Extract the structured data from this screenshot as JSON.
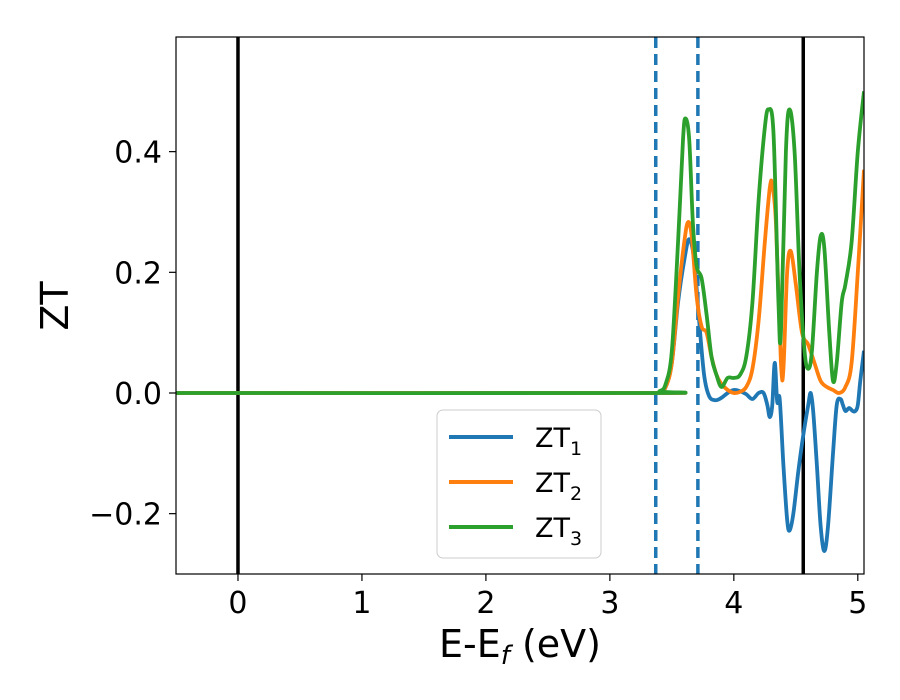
{
  "chart_data": {
    "type": "line",
    "xlabel": "E-E",
    "xlabel_sub": "f",
    "xlabel_unit": " (eV)",
    "ylabel": "ZT",
    "xlim": [
      -0.5,
      5.05
    ],
    "ylim": [
      -0.3,
      0.59
    ],
    "xticks": [
      0,
      1,
      2,
      3,
      4,
      5
    ],
    "xtick_labels": [
      "0",
      "1",
      "2",
      "3",
      "4",
      "5"
    ],
    "yticks": [
      -0.2,
      0.0,
      0.2,
      0.4
    ],
    "ytick_labels": [
      "−0.2",
      "0.0",
      "0.2",
      "0.4"
    ],
    "grid": false,
    "legend_position": "bottom-center",
    "vlines": [
      {
        "x": 0.0,
        "style": "solid",
        "color": "#000000"
      },
      {
        "x": 4.56,
        "style": "solid",
        "color": "#000000"
      },
      {
        "x": 3.37,
        "style": "dashed",
        "color": "#1f77b4"
      },
      {
        "x": 3.71,
        "style": "dashed",
        "color": "#1f77b4"
      }
    ],
    "series": [
      {
        "name": "ZT",
        "subscript": "1",
        "color": "#1f77b4",
        "points": [
          [
            -0.5,
            0.0
          ],
          [
            3.3,
            0.0
          ],
          [
            3.4,
            0.002
          ],
          [
            3.45,
            0.01
          ],
          [
            3.5,
            0.05
          ],
          [
            3.55,
            0.15
          ],
          [
            3.6,
            0.22
          ],
          [
            3.64,
            0.255
          ],
          [
            3.68,
            0.22
          ],
          [
            3.72,
            0.12
          ],
          [
            3.76,
            0.03
          ],
          [
            3.8,
            -0.005
          ],
          [
            3.85,
            -0.012
          ],
          [
            3.9,
            -0.008
          ],
          [
            3.95,
            0.0
          ],
          [
            4.0,
            0.005
          ],
          [
            4.05,
            0.003
          ],
          [
            4.1,
            -0.002
          ],
          [
            4.15,
            -0.01
          ],
          [
            4.2,
            0.0
          ],
          [
            4.24,
            0.0
          ],
          [
            4.27,
            -0.02
          ],
          [
            4.29,
            -0.04
          ],
          [
            4.31,
            -0.02
          ],
          [
            4.33,
            0.05
          ],
          [
            4.35,
            -0.015
          ],
          [
            4.37,
            -0.01
          ],
          [
            4.4,
            -0.12
          ],
          [
            4.43,
            -0.21
          ],
          [
            4.45,
            -0.228
          ],
          [
            4.48,
            -0.2
          ],
          [
            4.52,
            -0.13
          ],
          [
            4.56,
            -0.07
          ],
          [
            4.6,
            -0.02
          ],
          [
            4.62,
            0.0
          ],
          [
            4.64,
            -0.03
          ],
          [
            4.67,
            -0.12
          ],
          [
            4.7,
            -0.22
          ],
          [
            4.73,
            -0.262
          ],
          [
            4.76,
            -0.22
          ],
          [
            4.8,
            -0.1
          ],
          [
            4.83,
            -0.02
          ],
          [
            4.86,
            -0.01
          ],
          [
            4.88,
            -0.02
          ],
          [
            4.9,
            -0.03
          ],
          [
            4.93,
            -0.025
          ],
          [
            4.96,
            -0.03
          ],
          [
            4.98,
            -0.03
          ],
          [
            5.0,
            -0.02
          ],
          [
            5.02,
            0.02
          ],
          [
            5.05,
            0.07
          ]
        ]
      },
      {
        "name": "ZT",
        "subscript": "2",
        "color": "#ff7f0e",
        "points": [
          [
            -0.5,
            0.0
          ],
          [
            3.3,
            0.0
          ],
          [
            3.4,
            0.002
          ],
          [
            3.45,
            0.01
          ],
          [
            3.5,
            0.05
          ],
          [
            3.55,
            0.16
          ],
          [
            3.6,
            0.25
          ],
          [
            3.63,
            0.283
          ],
          [
            3.66,
            0.26
          ],
          [
            3.7,
            0.16
          ],
          [
            3.74,
            0.11
          ],
          [
            3.78,
            0.1
          ],
          [
            3.82,
            0.06
          ],
          [
            3.86,
            0.03
          ],
          [
            3.9,
            0.015
          ],
          [
            3.95,
            0.005
          ],
          [
            4.0,
            0.0
          ],
          [
            4.05,
            0.002
          ],
          [
            4.1,
            0.01
          ],
          [
            4.15,
            0.04
          ],
          [
            4.2,
            0.12
          ],
          [
            4.25,
            0.25
          ],
          [
            4.29,
            0.34
          ],
          [
            4.31,
            0.345
          ],
          [
            4.34,
            0.28
          ],
          [
            4.38,
            0.05
          ],
          [
            4.4,
            0.04
          ],
          [
            4.43,
            0.2
          ],
          [
            4.46,
            0.235
          ],
          [
            4.5,
            0.18
          ],
          [
            4.55,
            0.1
          ],
          [
            4.6,
            0.08
          ],
          [
            4.65,
            0.05
          ],
          [
            4.7,
            0.02
          ],
          [
            4.75,
            0.01
          ],
          [
            4.8,
            0.005
          ],
          [
            4.85,
            0.0
          ],
          [
            4.9,
            0.01
          ],
          [
            4.95,
            0.05
          ],
          [
            5.0,
            0.2
          ],
          [
            5.05,
            0.37
          ]
        ]
      },
      {
        "name": "ZT",
        "subscript": "3",
        "color": "#2ca02c",
        "points": [
          [
            -0.5,
            0.0
          ],
          [
            3.3,
            0.0
          ],
          [
            3.4,
            0.003
          ],
          [
            3.45,
            0.015
          ],
          [
            3.5,
            0.07
          ],
          [
            3.55,
            0.25
          ],
          [
            3.59,
            0.42
          ],
          [
            3.61,
            0.455
          ],
          [
            3.64,
            0.42
          ],
          [
            3.67,
            0.28
          ],
          [
            3.7,
            0.21
          ],
          [
            3.74,
            0.19
          ],
          [
            3.78,
            0.13
          ],
          [
            3.82,
            0.06
          ],
          [
            3.86,
            0.03
          ],
          [
            3.9,
            0.01
          ],
          [
            3.95,
            0.025
          ],
          [
            4.0,
            0.025
          ],
          [
            4.05,
            0.03
          ],
          [
            4.1,
            0.06
          ],
          [
            4.15,
            0.15
          ],
          [
            4.2,
            0.32
          ],
          [
            4.25,
            0.44
          ],
          [
            4.28,
            0.47
          ],
          [
            4.32,
            0.43
          ],
          [
            4.36,
            0.15
          ],
          [
            4.38,
            0.1
          ],
          [
            4.42,
            0.4
          ],
          [
            4.45,
            0.47
          ],
          [
            4.49,
            0.4
          ],
          [
            4.53,
            0.2
          ],
          [
            4.57,
            0.07
          ],
          [
            4.6,
            0.04
          ],
          [
            4.63,
            0.07
          ],
          [
            4.67,
            0.2
          ],
          [
            4.7,
            0.26
          ],
          [
            4.73,
            0.24
          ],
          [
            4.77,
            0.1
          ],
          [
            4.8,
            0.02
          ],
          [
            4.83,
            0.05
          ],
          [
            4.87,
            0.15
          ],
          [
            4.9,
            0.18
          ],
          [
            4.95,
            0.25
          ],
          [
            5.0,
            0.4
          ],
          [
            5.05,
            0.5
          ]
        ]
      }
    ]
  }
}
